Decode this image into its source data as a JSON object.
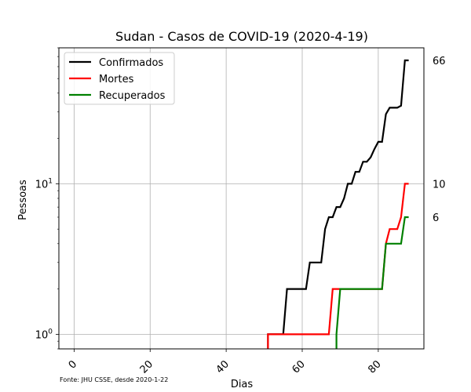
{
  "chart_data": {
    "type": "line",
    "title": "Sudan - Casos de COVID-19 (2020-4-19)",
    "xlabel": "Dias",
    "ylabel": "Pessoas",
    "yscale": "log",
    "xlim": [
      -4,
      92
    ],
    "ylim": [
      0.8,
      80
    ],
    "xticks": [
      0,
      20,
      40,
      60,
      80
    ],
    "xtick_labels": [
      "0",
      "20",
      "40",
      "60",
      "80"
    ],
    "xtick_rotation": 45,
    "yticks": [
      1,
      10
    ],
    "ytick_labels": [
      "10^0",
      "10^1"
    ],
    "grid": true,
    "legend_position": "upper-left",
    "source_note": "Fonte: JHU CSSE, desde 2020-1-22",
    "series": [
      {
        "name": "Confirmados",
        "color": "#000000",
        "points": [
          [
            51,
            1
          ],
          [
            55,
            1
          ],
          [
            56,
            2
          ],
          [
            61,
            2
          ],
          [
            62,
            3
          ],
          [
            65,
            3
          ],
          [
            66,
            5
          ],
          [
            67,
            6
          ],
          [
            68,
            6
          ],
          [
            69,
            7
          ],
          [
            70,
            7
          ],
          [
            71,
            8
          ],
          [
            72,
            10
          ],
          [
            73,
            10
          ],
          [
            74,
            12
          ],
          [
            75,
            12
          ],
          [
            76,
            14
          ],
          [
            77,
            14
          ],
          [
            78,
            15
          ],
          [
            79,
            17
          ],
          [
            80,
            19
          ],
          [
            81,
            19
          ],
          [
            82,
            29
          ],
          [
            83,
            32
          ],
          [
            84,
            32
          ],
          [
            85,
            32
          ],
          [
            86,
            33
          ],
          [
            87,
            66
          ],
          [
            88,
            66
          ]
        ]
      },
      {
        "name": "Mortes",
        "color": "#ff0000",
        "points": [
          [
            51,
            1
          ],
          [
            67,
            1
          ],
          [
            68,
            2
          ],
          [
            81,
            2
          ],
          [
            82,
            4
          ],
          [
            83,
            5
          ],
          [
            84,
            5
          ],
          [
            85,
            5
          ],
          [
            86,
            6
          ],
          [
            87,
            10
          ],
          [
            88,
            10
          ]
        ]
      },
      {
        "name": "Recuperados",
        "color": "#008000",
        "points": [
          [
            69,
            1
          ],
          [
            70,
            2
          ],
          [
            81,
            2
          ],
          [
            82,
            4
          ],
          [
            83,
            4
          ],
          [
            84,
            4
          ],
          [
            85,
            4
          ],
          [
            86,
            4
          ],
          [
            87,
            6
          ],
          [
            88,
            6
          ]
        ]
      }
    ],
    "end_labels": [
      {
        "text": "66",
        "value": 66
      },
      {
        "text": "10",
        "value": 10
      },
      {
        "text": "6",
        "value": 6
      }
    ]
  }
}
